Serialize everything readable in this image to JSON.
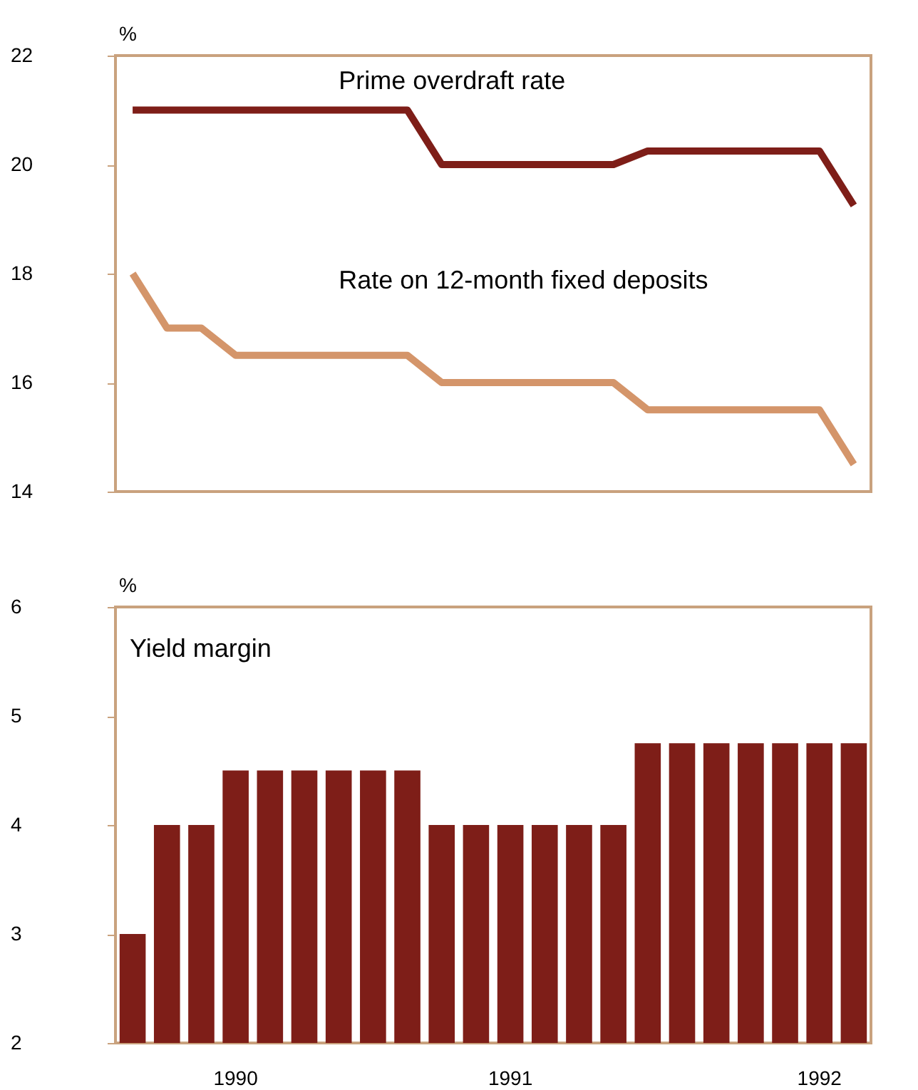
{
  "chart_data": [
    {
      "type": "line",
      "ylabel": "%",
      "categories": [
        null,
        null,
        null,
        null,
        null,
        null,
        null,
        null,
        null,
        null,
        null,
        null,
        null,
        null,
        null,
        null,
        null,
        null,
        null,
        null,
        null,
        null
      ],
      "ylim": [
        14,
        22
      ],
      "yticks": [
        14,
        16,
        18,
        20,
        22
      ],
      "tick_labels": "y",
      "line_style": "solid",
      "series": [
        {
          "name": "Prime overdraft rate",
          "color": "#7e1e18",
          "values": [
            21,
            21,
            21,
            21,
            21,
            21,
            21,
            21,
            21,
            20,
            20,
            20,
            20,
            20,
            20,
            20.25,
            20.25,
            20.25,
            20.25,
            20.25,
            20.25,
            19.25
          ]
        },
        {
          "name": "Rate on 12-month fixed deposits",
          "color": "#d4956a",
          "values": [
            18,
            17,
            17,
            16.5,
            16.5,
            16.5,
            16.5,
            16.5,
            16.5,
            16,
            16,
            16,
            16,
            16,
            16,
            15.5,
            15.5,
            15.5,
            15.5,
            15.5,
            15.5,
            14.5
          ]
        }
      ]
    },
    {
      "type": "bar",
      "title": "Yield margin",
      "ylabel": "%",
      "categories": [
        null,
        null,
        null,
        "1990",
        null,
        null,
        null,
        null,
        null,
        null,
        null,
        "1991",
        null,
        null,
        null,
        null,
        null,
        null,
        null,
        null,
        "1992",
        null
      ],
      "ylim": [
        2,
        6
      ],
      "yticks": [
        2,
        3,
        4,
        5,
        6
      ],
      "color": "#7e1e18",
      "values": [
        3,
        4,
        4,
        4.5,
        4.5,
        4.5,
        4.5,
        4.5,
        4.5,
        4,
        4,
        4,
        4,
        4,
        4,
        4.75,
        4.75,
        4.75,
        4.75,
        4.75,
        4.75,
        4.75
      ]
    }
  ]
}
